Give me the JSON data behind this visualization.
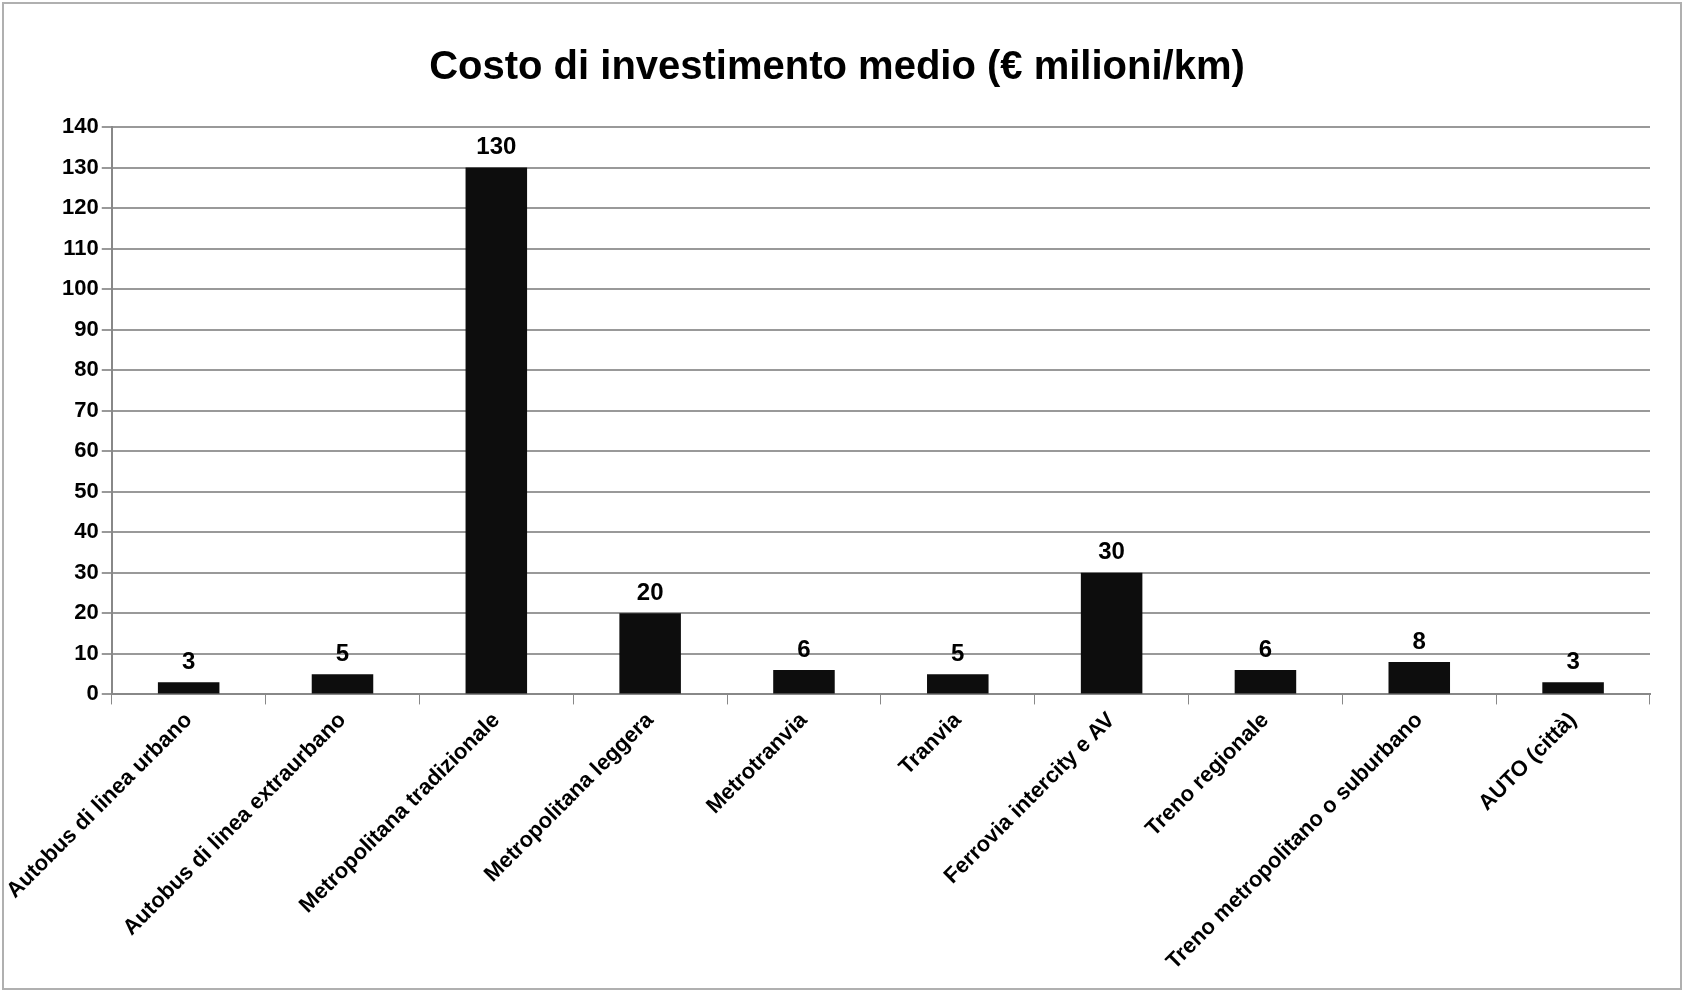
{
  "chart_data": {
    "type": "bar",
    "title": "Costo di investimento medio (€ milioni/km)",
    "categories": [
      "Autobus di linea urbano",
      "Autobus di linea extraurbano",
      "Metropolitana tradizionale",
      "Metropolitana leggera",
      "Metrotranvia",
      "Tranvia",
      "Ferrovia intercity e AV",
      "Treno regionale",
      "Treno metropolitano o suburbano",
      "AUTO (città)"
    ],
    "values": [
      3,
      5,
      130,
      20,
      6,
      5,
      30,
      6,
      8,
      3
    ],
    "color": "#0d0d0d",
    "ylim": [
      0,
      140
    ],
    "yticks": [
      0,
      10,
      20,
      30,
      40,
      50,
      60,
      70,
      80,
      90,
      100,
      110,
      120,
      130,
      140
    ],
    "grid": "y",
    "legend": false,
    "data_labels": true
  }
}
